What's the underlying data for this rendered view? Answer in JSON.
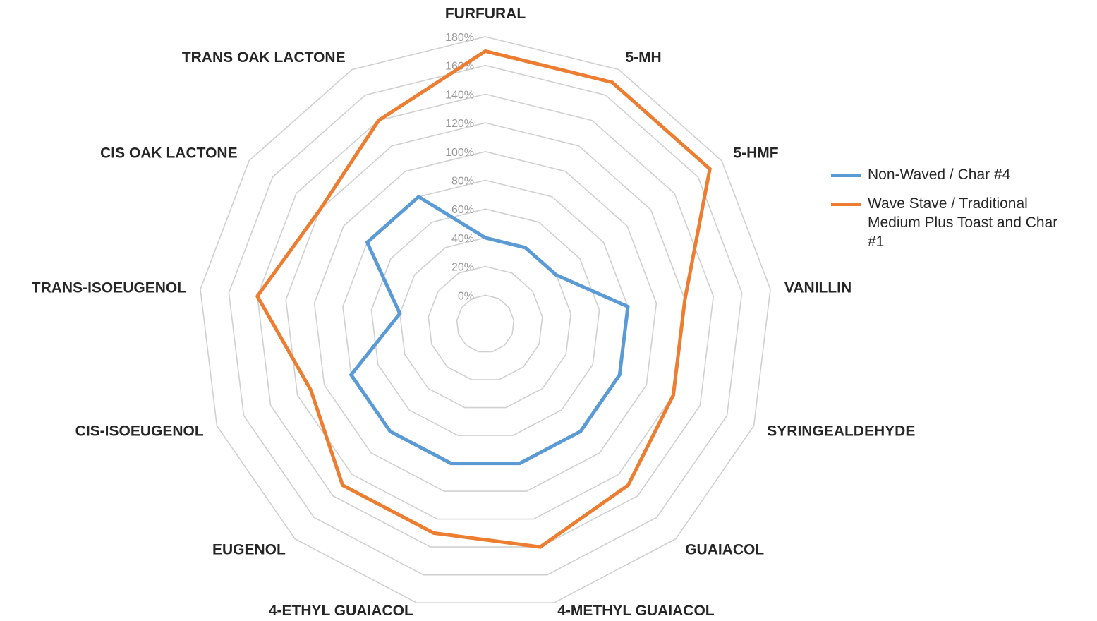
{
  "chart_data": {
    "type": "radar",
    "categories": [
      "FURFURAL",
      "5-MH",
      "5-HMF",
      "VANILLIN",
      "SYRINGEALDEHYDE",
      "GUAIACOL",
      "4-METHYL GUAIACOL",
      "4-ETHYL GUAIACOL",
      "EUGENOL",
      "CIS-ISOEUGENOL",
      "TRANS-ISOEUGENOL",
      "CIS OAK LACTONE",
      "TRANS OAK LACTONE"
    ],
    "tick_labels": [
      "0%",
      "20%",
      "40%",
      "60%",
      "80%",
      "100%",
      "120%",
      "140%",
      "160%",
      "180%"
    ],
    "rmin": -20,
    "rmax": 180,
    "tick_step": 20,
    "series": [
      {
        "name": "Non-Waved / Char #4",
        "color": "#5B9BD5",
        "values": [
          40,
          40,
          40,
          80,
          80,
          80,
          80,
          80,
          80,
          80,
          40,
          80,
          80
        ]
      },
      {
        "name": "Wave Stave / Traditional Medium Plus Toast and Char #1",
        "color": "#ED7D31",
        "values": [
          170,
          170,
          170,
          120,
          120,
          130,
          140,
          130,
          130,
          110,
          140,
          120,
          140
        ]
      }
    ],
    "grid_color": "#D0D0D0",
    "legend_position": "right"
  }
}
